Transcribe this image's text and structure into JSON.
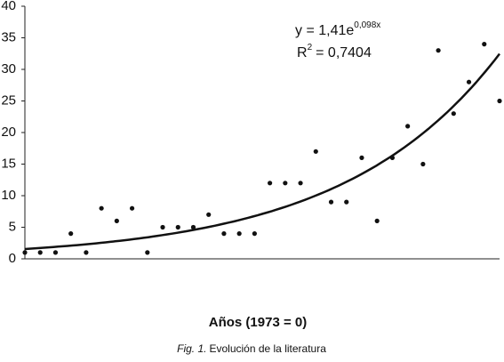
{
  "chart_data": {
    "type": "scatter",
    "x_label": "Años (1973 = 0)",
    "caption": {
      "label": "Fig. 1.",
      "text": "Evolución de la literatura"
    },
    "equation": {
      "text": "y = 1,41e",
      "exponent": "0,098x"
    },
    "r_squared": {
      "text": "R",
      "exponent": "2",
      "value": "= 0,7404"
    },
    "trendline": "exponential",
    "color": "#111111",
    "x": [
      0,
      1,
      2,
      3,
      4,
      5,
      6,
      7,
      8,
      9,
      10,
      11,
      12,
      13,
      14,
      15,
      16,
      17,
      18,
      19,
      20,
      21,
      22,
      23,
      24,
      25,
      26,
      27,
      28,
      29,
      30,
      31
    ],
    "values": [
      1,
      1,
      1,
      4,
      1,
      8,
      6,
      8,
      1,
      5,
      5,
      5,
      7,
      4,
      4,
      4,
      12,
      12,
      12,
      17,
      9,
      9,
      16,
      6,
      16,
      21,
      15,
      33,
      23,
      28,
      34,
      25
    ],
    "xlim": [
      0,
      31
    ],
    "ylim": [
      0,
      40
    ],
    "yticks": [
      0,
      5,
      10,
      15,
      20,
      25,
      30,
      35,
      40
    ]
  }
}
